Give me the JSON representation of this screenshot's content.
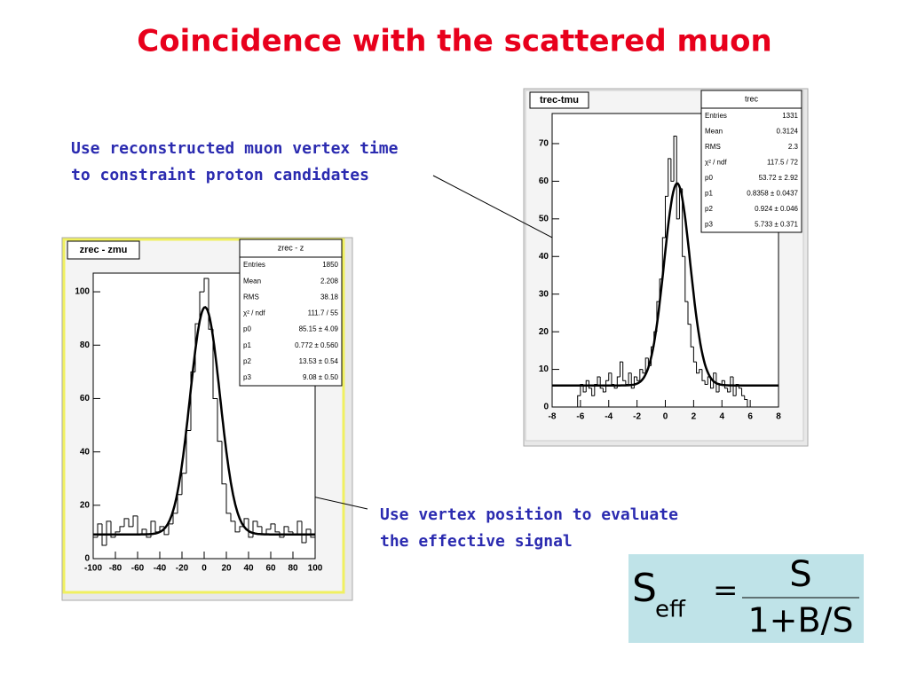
{
  "title": "Coincidence with the scattered muon",
  "annotations": [
    {
      "lines": [
        "Use reconstructed muon vertex time",
        "to constraint proton candidates"
      ]
    },
    {
      "lines": [
        "Use vertex position to evaluate",
        "the effective signal"
      ]
    }
  ],
  "formula": {
    "lhs": "S",
    "subscript": "eff",
    "relation": "=",
    "numerator": "S",
    "denominator": "1+B/S"
  },
  "chart_data": [
    {
      "type": "histogram",
      "title": "zrec - zmu",
      "bins": [
        -100,
        -96,
        -92,
        -88,
        -84,
        -80,
        -76,
        -72,
        -68,
        -64,
        -60,
        -56,
        -52,
        -48,
        -44,
        -40,
        -36,
        -32,
        -28,
        -24,
        -20,
        -16,
        -12,
        -8,
        -4,
        0,
        4,
        8,
        12,
        16,
        20,
        24,
        28,
        32,
        36,
        40,
        44,
        48,
        52,
        56,
        60,
        64,
        68,
        72,
        76,
        80,
        84,
        88,
        92,
        96,
        100
      ],
      "values": [
        8,
        13,
        5,
        14,
        8,
        10,
        12,
        15,
        12,
        16,
        9,
        11,
        8,
        14,
        10,
        12,
        9,
        13,
        17,
        24,
        32,
        48,
        70,
        88,
        100,
        105,
        86,
        60,
        44,
        28,
        17,
        14,
        10,
        12,
        15,
        8,
        14,
        12,
        9,
        11,
        13,
        10,
        8,
        12,
        10,
        9,
        14,
        6,
        11,
        8
      ],
      "xlim": [
        -100,
        100
      ],
      "ylim": [
        0,
        107
      ],
      "xticks": [
        -100,
        -80,
        -60,
        -40,
        -20,
        0,
        20,
        40,
        60,
        80,
        100
      ],
      "yticks": [
        0,
        20,
        40,
        60,
        80,
        100
      ],
      "stats": {
        "title": "zrec - z",
        "rows": [
          {
            "name": "Entries",
            "value": 1850
          },
          {
            "name": "Mean",
            "value": 2.208
          },
          {
            "name": "RMS",
            "value": 38.18
          },
          {
            "name": "χ² / ndf",
            "value": "111.7 / 55"
          },
          {
            "name": "p0",
            "value": {
              "value": 85.15,
              "label": "85.15 ± 4.09"
            }
          },
          {
            "name": "p1",
            "value": {
              "value": 0.772,
              "label": "0.772 ± 0.560"
            }
          },
          {
            "name": "p2",
            "value": {
              "value": 13.53,
              "label": "13.53 ± 0.54"
            }
          },
          {
            "name": "p3",
            "value": {
              "value": 9.08,
              "label": "9.08 ± 0.50"
            }
          }
        ]
      }
    },
    {
      "type": "histogram",
      "title": "trec-tmu",
      "bins": [
        -8,
        -7.8,
        -7.6,
        -7.4,
        -7.2,
        -7,
        -6.8,
        -6.6,
        -6.4,
        -6.2,
        -6,
        -5.8,
        -5.6,
        -5.4,
        -5.2,
        -5,
        -4.8,
        -4.6,
        -4.4,
        -4.2,
        -4,
        -3.8,
        -3.6,
        -3.4,
        -3.2,
        -3,
        -2.8,
        -2.6,
        -2.4,
        -2.2,
        -2,
        -1.8,
        -1.6,
        -1.4,
        -1.2,
        -1,
        -0.8,
        -0.6,
        -0.4,
        -0.2,
        0,
        0.2,
        0.4,
        0.6,
        0.8,
        1,
        1.2,
        1.4,
        1.6,
        1.8,
        2,
        2.2,
        2.4,
        2.6,
        2.8,
        3,
        3.2,
        3.4,
        3.6,
        3.8,
        4,
        4.2,
        4.4,
        4.6,
        4.8,
        5,
        5.2,
        5.4,
        5.6,
        5.8,
        6,
        6.2,
        6.4,
        6.6,
        6.8,
        7,
        7.2,
        7.4,
        7.6,
        7.8,
        8
      ],
      "values": [
        0,
        0,
        0,
        0,
        0,
        0,
        0,
        0,
        0,
        3,
        6,
        4,
        7,
        5,
        3,
        6,
        8,
        5,
        4,
        7,
        9,
        6,
        5,
        8,
        12,
        7,
        6,
        9,
        5,
        8,
        7,
        10,
        9,
        13,
        11,
        16,
        20,
        28,
        34,
        45,
        56,
        66,
        60,
        72,
        50,
        58,
        40,
        28,
        22,
        16,
        12,
        9,
        10,
        7,
        6,
        8,
        5,
        9,
        4,
        6,
        7,
        5,
        4,
        8,
        3,
        6,
        5,
        3,
        2,
        0,
        0,
        0,
        0,
        0,
        0,
        0,
        0,
        0,
        0,
        0
      ],
      "xlim": [
        -8,
        8
      ],
      "ylim": [
        0,
        78
      ],
      "xticks": [
        -8,
        -6,
        -4,
        -2,
        0,
        2,
        4,
        6,
        8
      ],
      "yticks": [
        0,
        10,
        20,
        30,
        40,
        50,
        60,
        70
      ],
      "stats": {
        "title": "trec",
        "rows": [
          {
            "name": "Entries",
            "value": 1331
          },
          {
            "name": "Mean",
            "value": 0.3124
          },
          {
            "name": "RMS",
            "value": 2.3
          },
          {
            "name": "χ² / ndf",
            "value": "117.5 / 72"
          },
          {
            "name": "p0",
            "value": {
              "value": 53.72,
              "label": "53.72 ± 2.92"
            }
          },
          {
            "name": "p1",
            "value": {
              "value": 0.8358,
              "label": "0.8358 ± 0.0437"
            }
          },
          {
            "name": "p2",
            "value": {
              "value": 0.924,
              "label": "0.924 ± 0.046"
            }
          },
          {
            "name": "p3",
            "value": {
              "value": 5.733,
              "label": "5.733 ± 0.371"
            }
          }
        ]
      }
    }
  ]
}
